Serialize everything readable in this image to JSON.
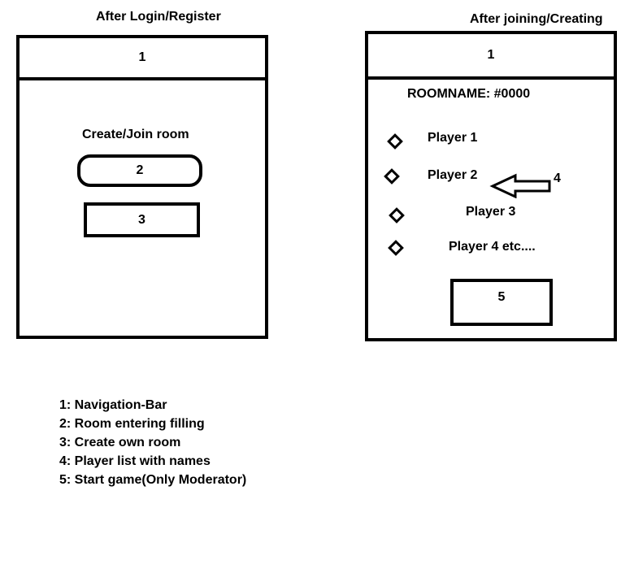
{
  "left_screen": {
    "title": "After Login/Register",
    "navbar_number": "1",
    "heading": "Create/Join room",
    "room_input_number": "2",
    "create_button_number": "3"
  },
  "right_screen": {
    "title": "After joining/Creating",
    "navbar_number": "1",
    "room_name": "ROOMNAME: #0000",
    "players": [
      "Player 1",
      "Player 2",
      "Player 3",
      "Player 4 etc...."
    ],
    "callout_number": "4",
    "start_button_number": "5"
  },
  "legend": [
    "1: Navigation-Bar",
    "2: Room entering filling",
    "3: Create own room",
    "4: Player list with names",
    "5: Start game(Only Moderator)"
  ]
}
